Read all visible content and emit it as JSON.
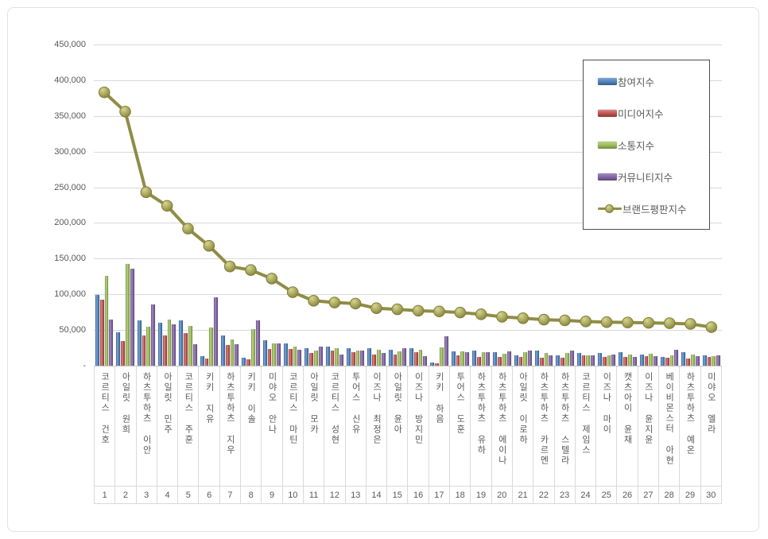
{
  "page": {
    "background": "#ffffff",
    "frame_border_color": "#e2e2e2"
  },
  "legend": {
    "position": "top-right",
    "border_color": "#4d4d4d"
  },
  "chart_data": {
    "type": "bar",
    "subtype": "clustered-bars-with-line",
    "title": "",
    "xlabel": "",
    "ylabel": "",
    "grid": true,
    "legend_position": "top-right",
    "categories": [
      "코르티스 건호",
      "아일릿 원희",
      "하츠투하츠 이안",
      "아일릿 민주",
      "코르티스 주훈",
      "키키 지유",
      "하츠투하츠 지우",
      "키키 이솔",
      "미야오 안나",
      "코르티스 마틴",
      "아일릿 모카",
      "코르티스 성현",
      "투어스 신유",
      "이즈나 최정은",
      "아일릿 윤아",
      "이즈나 방지민",
      "키키 하음",
      "투어스 도훈",
      "하츠투하츠 유하",
      "하츠투하츠 에이나",
      "아일릿 이로하",
      "하츠투하츠 카르멘",
      "하츠투하츠 스텔라",
      "코르티스 제임스",
      "이즈나 마이",
      "캣츠아이 윤채",
      "이즈나 윤지윤",
      "베이비몬스터 아현",
      "하츠투하츠 예온",
      "미야오 엘라"
    ],
    "ranks": [
      "1",
      "2",
      "3",
      "4",
      "5",
      "6",
      "7",
      "8",
      "9",
      "10",
      "11",
      "12",
      "13",
      "14",
      "15",
      "16",
      "17",
      "18",
      "19",
      "20",
      "21",
      "22",
      "23",
      "24",
      "25",
      "26",
      "27",
      "28",
      "29",
      "30"
    ],
    "series": [
      {
        "name": "참여지수",
        "key": "participation",
        "color": "#4F81BD",
        "color_light": "#7FA8D4",
        "color_dark": "#35587F",
        "values": [
          99000,
          47000,
          64000,
          60000,
          63000,
          13000,
          42000,
          11000,
          36000,
          31000,
          24000,
          27000,
          24000,
          25000,
          22000,
          24000,
          5000,
          20000,
          21000,
          18500,
          15000,
          21000,
          15000,
          17500,
          18000,
          19000,
          16000,
          12500,
          19000,
          14000
        ]
      },
      {
        "name": "미디어지수",
        "key": "media",
        "color": "#C0504D",
        "color_light": "#D88B88",
        "color_dark": "#8C3835",
        "values": [
          92000,
          34000,
          42000,
          42500,
          45500,
          9500,
          28500,
          8500,
          23000,
          23000,
          17500,
          21000,
          19000,
          16000,
          15500,
          18500,
          3500,
          15000,
          12000,
          12000,
          12500,
          11500,
          11000,
          15000,
          12000,
          12500,
          13000,
          11000,
          10000,
          12500
        ]
      },
      {
        "name": "소통지수",
        "key": "communication",
        "color": "#9BBB59",
        "color_light": "#BCD28A",
        "color_dark": "#6E8A3C",
        "values": [
          126000,
          142500,
          55000,
          65000,
          56000,
          53000,
          37000,
          51000,
          31500,
          27000,
          21000,
          25000,
          21000,
          22000,
          20000,
          22000,
          25500,
          20000,
          19000,
          16500,
          19000,
          17500,
          17500,
          15000,
          15000,
          16000,
          17000,
          14500,
          15500,
          13500
        ]
      },
      {
        "name": "커뮤니티지수",
        "key": "community",
        "color": "#8064A2",
        "color_light": "#A68BC0",
        "color_dark": "#5C4876",
        "values": [
          64500,
          135500,
          86000,
          57500,
          30000,
          96000,
          30500,
          63500,
          31500,
          22000,
          27000,
          16000,
          21000,
          17500,
          24000,
          13500,
          41000,
          19000,
          19000,
          20500,
          21000,
          14500,
          21000,
          14000,
          16000,
          12500,
          13000,
          22000,
          13000,
          14500
        ]
      }
    ],
    "line_series": {
      "name": "브랜드평판지수",
      "key": "brand-index",
      "color": "#8F8D45",
      "marker_light": "#D6D590",
      "marker_mid": "#A8A65B",
      "marker_dark": "#7C7A35",
      "marker_stroke": "#827F3C",
      "values": [
        383000,
        356000,
        243000,
        224000,
        192000,
        168000,
        139000,
        134000,
        122000,
        103000,
        91000,
        88500,
        87000,
        80500,
        79000,
        77000,
        76000,
        74500,
        72000,
        68500,
        66500,
        64500,
        63500,
        62000,
        61000,
        60500,
        60000,
        59500,
        58500,
        54000
      ]
    },
    "y_axis": {
      "max": 450000,
      "tick_step": 50000,
      "tick_labels": [
        "450,000",
        "400,000",
        "350,000",
        "300,000",
        "250,000",
        "200,000",
        "150,000",
        "100,000",
        "50,000",
        "-"
      ],
      "gridline_color": "#d9d9d9",
      "zero_line_color": "#c6c6c6"
    }
  }
}
